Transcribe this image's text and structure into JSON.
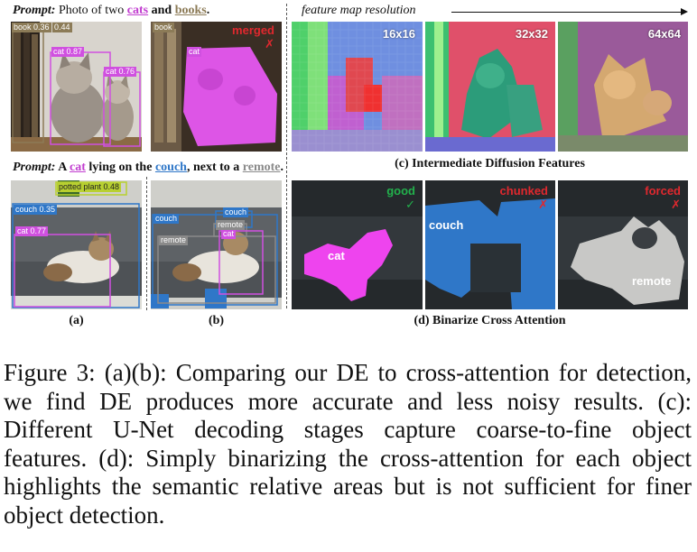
{
  "prompt1": {
    "lead": "Prompt:",
    "pre": "Photo of two",
    "w1": "cats",
    "mid": "and",
    "w2": "books",
    "end": "."
  },
  "prompt2": {
    "lead": "Prompt:",
    "pre": "A",
    "w1": "cat",
    "mid1": "lying on the",
    "w2": "couch",
    "mid2": ", next to a",
    "w3": "remote",
    "end": "."
  },
  "feature_header": "feature map resolution",
  "resolutions": [
    "16x16",
    "32x32",
    "64x64"
  ],
  "panel_a_top_tags": {
    "book": "book 0.36",
    "book2": "0.44",
    "cat1": "cat 0.87",
    "cat2": "cat 0.76"
  },
  "panel_b_top_tags": {
    "book": "book",
    "cat": "cat",
    "merged": "merged",
    "cross": "✗"
  },
  "panel_a_bottom_tags": {
    "plant": "potted plant 0.48",
    "couch": "couch 0.35",
    "cat": "cat 0.77"
  },
  "panel_b_bottom_tags": {
    "couch1": "couch",
    "couch2": "couch",
    "cat": "cat",
    "remote1": "remote",
    "remote2": "remote"
  },
  "panel_d": {
    "good": "good",
    "check": "✓",
    "chunked": "chunked",
    "forced": "forced",
    "cross": "✗",
    "cat": "cat",
    "couch": "couch",
    "remote": "remote"
  },
  "sub_captions": {
    "a": "(a)",
    "b": "(b)",
    "c": "(c) Intermediate Diffusion Features",
    "d": "(d) Binarize Cross Attention"
  },
  "figure_caption": "Figure 3: (a)(b): Comparing our DE to cross-attention for detection, we find DE produces more accurate and less noisy results. (c): Different U-Net decoding stages capture coarse-to-fine object features. (d): Simply binarizing the cross-attention for each object highlights the semantic relative areas but is not sufficient for finer object detection.",
  "colors": {
    "cat": "#c23fd0",
    "books": "#8c7b57",
    "couch": "#2f77c8",
    "remote": "#8a8a8a",
    "good": "#22b14c",
    "bad": "#e0282e"
  }
}
